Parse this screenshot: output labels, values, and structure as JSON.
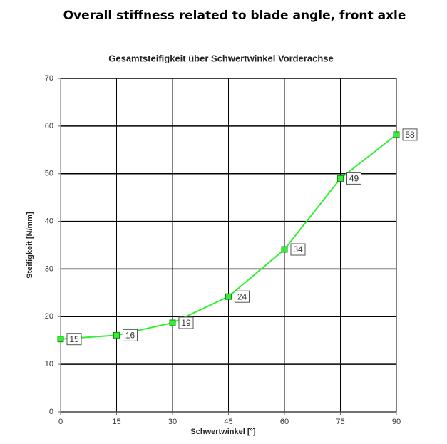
{
  "heading": "Overall stiffness related to blade angle, front axle",
  "chart_data": {
    "type": "line",
    "title": "Gesamtsteifigkeit über Schwertwinkel Vorderachse",
    "x_label": "Schwertwinkel [°]",
    "y_label": "Steifigkeit [N/mm]",
    "x": [
      0,
      15,
      30,
      45,
      60,
      75,
      90
    ],
    "series": [
      {
        "name": "Steifigkeit",
        "color": "#33ee33",
        "values": [
          15.3,
          16.1,
          18.7,
          24.2,
          34.1,
          49.0,
          58.2
        ],
        "value_labels": [
          "15",
          "16",
          "19",
          "24",
          "34",
          "49",
          "58"
        ]
      }
    ],
    "xlim": [
      0,
      90
    ],
    "xticks": [
      0,
      15,
      30,
      45,
      60,
      75,
      90
    ],
    "ylim": [
      0,
      70
    ],
    "yticks": [
      0,
      10,
      20,
      30,
      40,
      50,
      60,
      70
    ],
    "grid": true
  }
}
